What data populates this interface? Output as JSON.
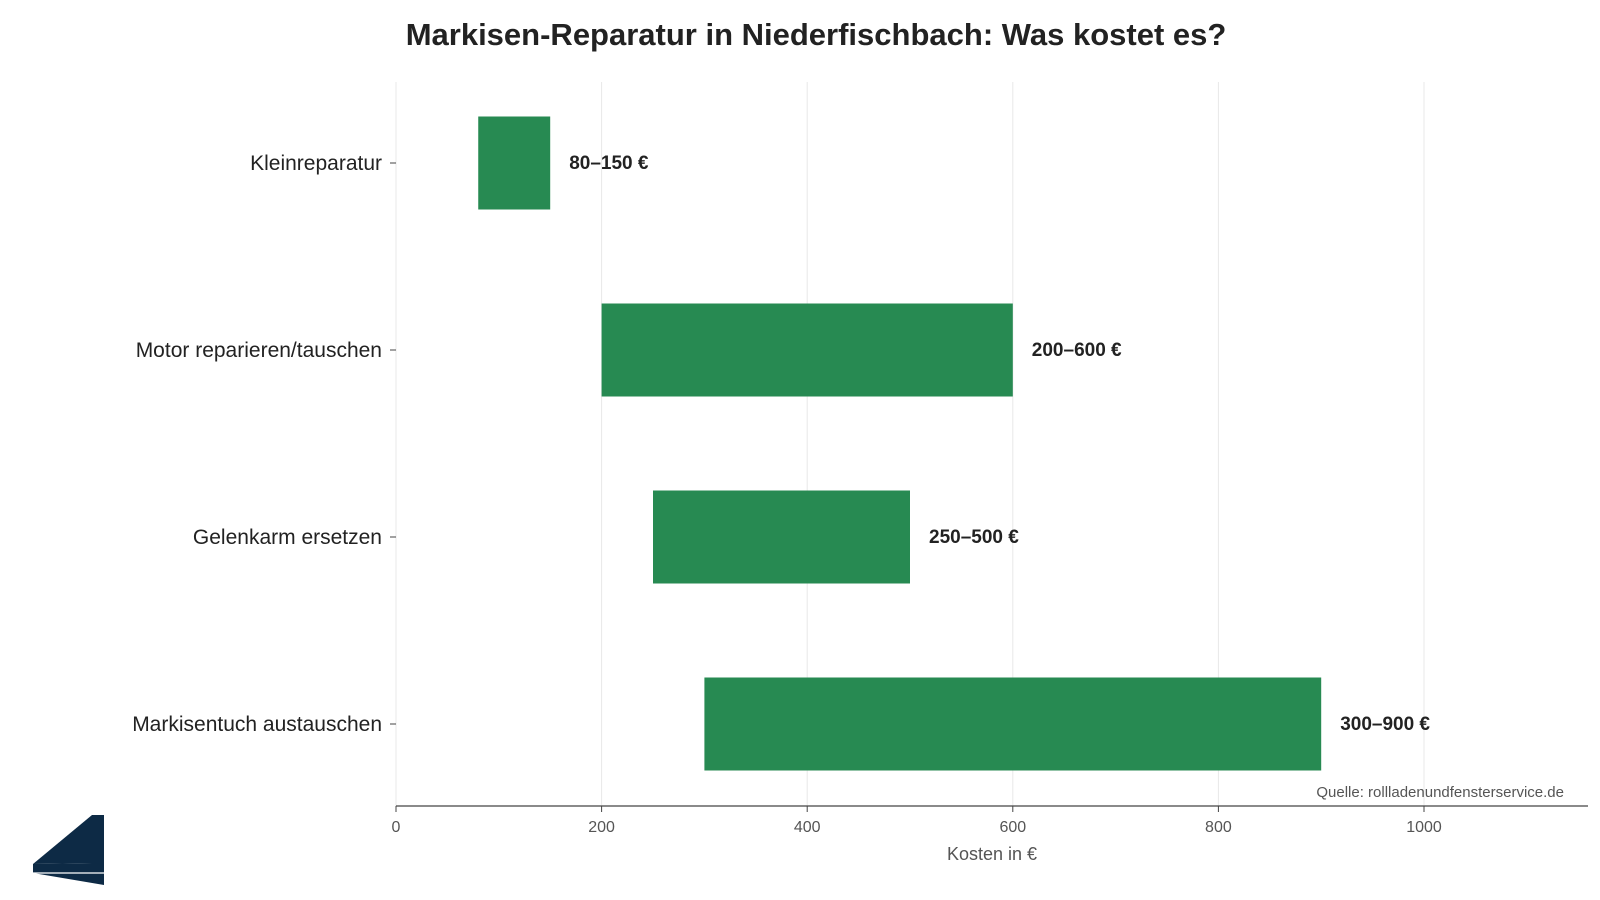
{
  "chart_data": {
    "type": "bar",
    "orientation": "horizontal",
    "title": "Markisen-Reparatur in Niederfischbach: Was kostet es?",
    "xlabel": "Kosten in €",
    "ylabel": "",
    "xlim": [
      0,
      1150
    ],
    "xticks": [
      0,
      200,
      400,
      600,
      800,
      1000
    ],
    "grid": true,
    "categories": [
      "Kleinreparatur",
      "Motor reparieren/tauschen",
      "Gelenkarm ersetzen",
      "Markisentuch austauschen"
    ],
    "ranges": [
      [
        80,
        150
      ],
      [
        200,
        600
      ],
      [
        250,
        500
      ],
      [
        300,
        900
      ]
    ],
    "labels": [
      "80–150 €",
      "200–600 €",
      "250–500 €",
      "300–900 €"
    ],
    "color": "#278a52",
    "source": "Quelle: rollladenundfensterservice.de"
  },
  "logo": {
    "name": "window-logo-icon",
    "color": "#0d2a45"
  }
}
